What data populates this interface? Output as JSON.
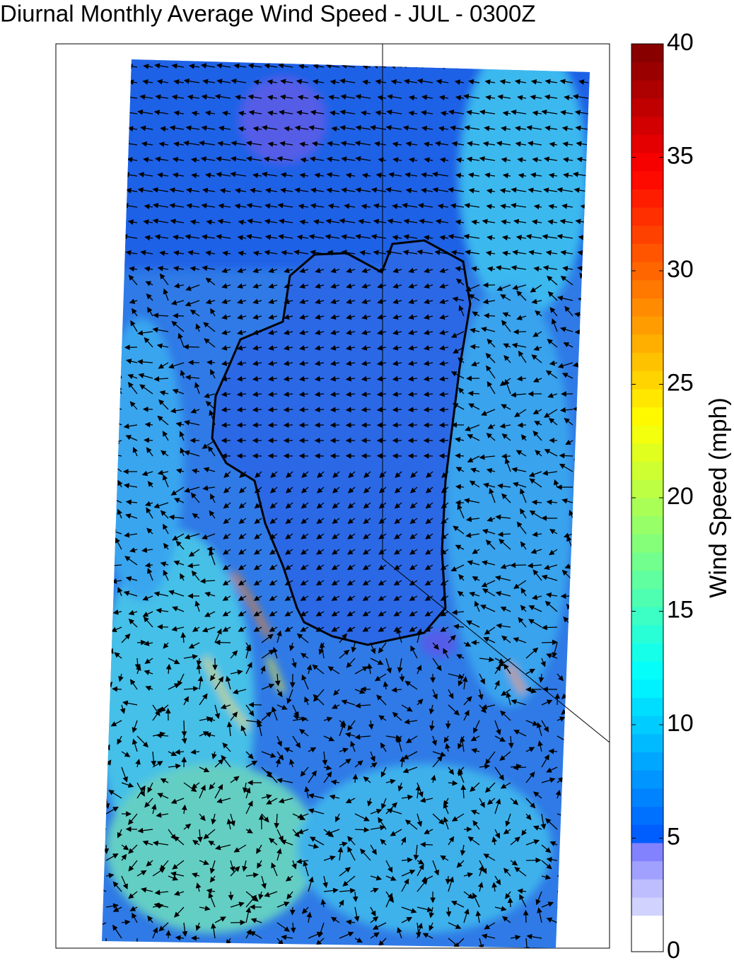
{
  "chart_data": {
    "type": "heatmap",
    "title": "Diurnal Monthly Average Wind Speed - JUL - 0300Z",
    "colorbar": {
      "label": "Wind Speed (mph)",
      "lim": [
        0,
        40
      ],
      "ticks": [
        0,
        5,
        10,
        15,
        20,
        25,
        30,
        35,
        40
      ]
    }
  }
}
